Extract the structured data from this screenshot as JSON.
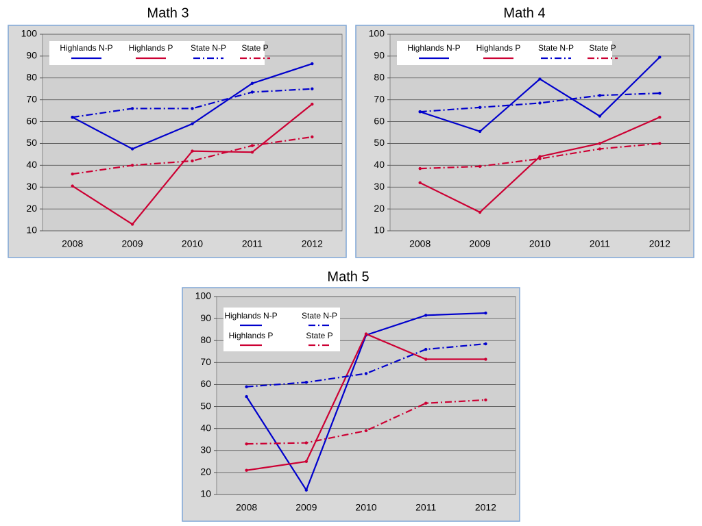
{
  "chart_data": [
    {
      "type": "line",
      "title": "Math 3",
      "categories": [
        "2008",
        "2009",
        "2010",
        "2011",
        "2012"
      ],
      "ylim": [
        10,
        100
      ],
      "yticks": [
        10,
        20,
        30,
        40,
        50,
        60,
        70,
        80,
        90,
        100
      ],
      "grid": true,
      "series": [
        {
          "name": "Highlands N-P",
          "color": "#0000cc",
          "style": "solid",
          "values": [
            62,
            47.5,
            59,
            77.5,
            86.5
          ]
        },
        {
          "name": "Highlands P",
          "color": "#cc0033",
          "style": "solid",
          "values": [
            30.5,
            13,
            46.5,
            46,
            68
          ]
        },
        {
          "name": "State N-P",
          "color": "#0000cc",
          "style": "dashdot",
          "values": [
            62,
            66,
            66,
            73.5,
            75
          ]
        },
        {
          "name": "State P",
          "color": "#cc0033",
          "style": "dashdot",
          "values": [
            36,
            40,
            42,
            49,
            53
          ]
        }
      ]
    },
    {
      "type": "line",
      "title": "Math 4",
      "categories": [
        "2008",
        "2009",
        "2010",
        "2011",
        "2012"
      ],
      "ylim": [
        10,
        100
      ],
      "yticks": [
        10,
        20,
        30,
        40,
        50,
        60,
        70,
        80,
        90,
        100
      ],
      "grid": true,
      "series": [
        {
          "name": "Highlands N-P",
          "color": "#0000cc",
          "style": "solid",
          "values": [
            64.5,
            55.5,
            79.5,
            62.5,
            89.5
          ]
        },
        {
          "name": "Highlands P",
          "color": "#cc0033",
          "style": "solid",
          "values": [
            32,
            18.5,
            44,
            50,
            62
          ]
        },
        {
          "name": "State N-P",
          "color": "#0000cc",
          "style": "dashdot",
          "values": [
            64.5,
            66.5,
            68.5,
            72,
            73
          ]
        },
        {
          "name": "State P",
          "color": "#cc0033",
          "style": "dashdot",
          "values": [
            38.5,
            39.5,
            43,
            47.5,
            50
          ]
        }
      ]
    },
    {
      "type": "line",
      "title": "Math 5",
      "categories": [
        "2008",
        "2009",
        "2010",
        "2011",
        "2012"
      ],
      "ylim": [
        10,
        100
      ],
      "yticks": [
        10,
        20,
        30,
        40,
        50,
        60,
        70,
        80,
        90,
        100
      ],
      "grid": true,
      "series": [
        {
          "name": "Highlands N-P",
          "color": "#0000cc",
          "style": "solid",
          "values": [
            54.5,
            12,
            82.5,
            91.5,
            92.5
          ]
        },
        {
          "name": "Highlands P",
          "color": "#cc0033",
          "style": "solid",
          "values": [
            21,
            25,
            83,
            71.5,
            71.5
          ]
        },
        {
          "name": "State N-P",
          "color": "#0000cc",
          "style": "dashdot",
          "values": [
            59,
            61,
            65,
            76,
            78.5
          ]
        },
        {
          "name": "State P",
          "color": "#cc0033",
          "style": "dashdot",
          "values": [
            33,
            33.5,
            39,
            51.5,
            53
          ]
        }
      ]
    }
  ]
}
